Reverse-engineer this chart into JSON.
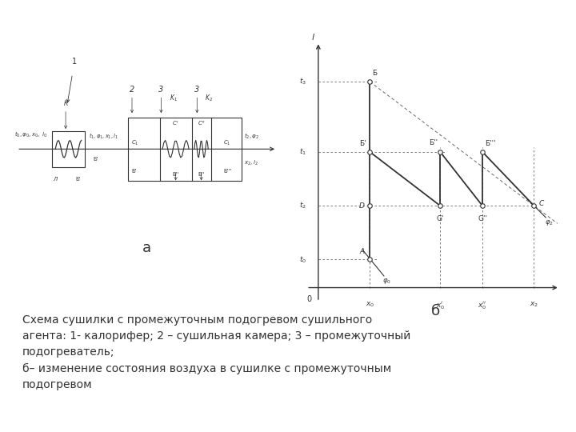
{
  "caption_line1": "Схема сушилки с промежуточным подогревом сушильного",
  "caption_line2": "агента: 1- калорифер; 2 – сушильная камера; 3 – промежуточный",
  "caption_line3": "подогреватель;",
  "caption_line4": "б– изменение состояния воздуха в сушилке с промежуточным",
  "caption_line5": "подогревом",
  "label_a": "а",
  "label_b": "б",
  "bg_color": "#ffffff",
  "line_color": "#333333",
  "dashed_color": "#666666"
}
